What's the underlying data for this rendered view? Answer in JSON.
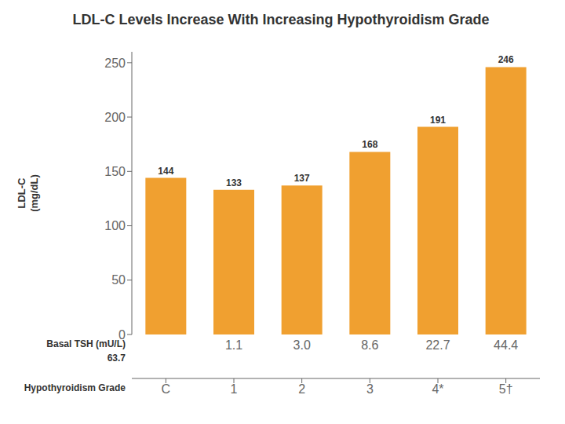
{
  "chart_data": {
    "type": "bar",
    "title": "LDL-C Levels Increase With Increasing Hypothyroidism Grade",
    "categories": [
      "C",
      "1",
      "2",
      "3",
      "4*",
      "5†"
    ],
    "values": [
      144,
      133,
      137,
      168,
      191,
      246
    ],
    "color": "#F0A030",
    "xlabel": "Hypothyroidism Grade",
    "ylabel": "LDL-C\n(mg/dL)",
    "ylim": [
      0,
      260
    ],
    "yticks": [
      0,
      50,
      100,
      150,
      200,
      250
    ],
    "grid": false,
    "data_labels": true,
    "annotations": [
      {
        "text": "Basal TSH (mU/L)",
        "labels": [
          null,
          "1.1",
          "3.0",
          "8.6",
          "22.7",
          "44.4"
        ]
      },
      {
        "text": "63.7"
      }
    ]
  }
}
